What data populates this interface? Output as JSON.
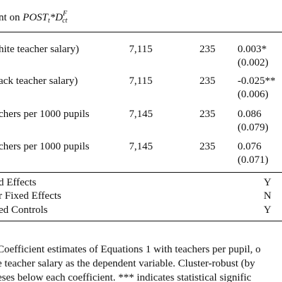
{
  "header": {
    "text": "nt on ",
    "math_base": "POST",
    "math_t": "t",
    "math_star": "*",
    "math_d": "D",
    "math_sup": "F",
    "math_sub": "ct"
  },
  "rows": [
    {
      "label": "hite teacher salary)",
      "n": "7,115",
      "groups": "235",
      "coef": "0.003*",
      "se": "(0.002)"
    },
    {
      "label": "ack teacher salary)",
      "n": "7,115",
      "groups": "235",
      "coef": "-0.025**",
      "se": "(0.006)"
    },
    {
      "label": "chers per 1000 pupils",
      "n": "7,145",
      "groups": "235",
      "coef": "0.086",
      "se": "(0.079)"
    },
    {
      "label": "chers per 1000 pupils",
      "n": "7,145",
      "groups": "235",
      "coef": "0.076",
      "se": "(0.071)"
    }
  ],
  "fixed_effects": [
    {
      "label": "d Effects",
      "value": "Y"
    },
    {
      "label": "r Fixed Effects",
      "value": "N"
    },
    {
      "label": "ed Controls",
      "value": "Y"
    }
  ],
  "caption": {
    "line1": "Coefficient estimates of Equations 1 with teachers per pupil, o",
    "line2": "e teacher salary as the dependent variable. Cluster-robust (by",
    "line3": "eses below each coefficient. *** indicates statistical signific"
  }
}
